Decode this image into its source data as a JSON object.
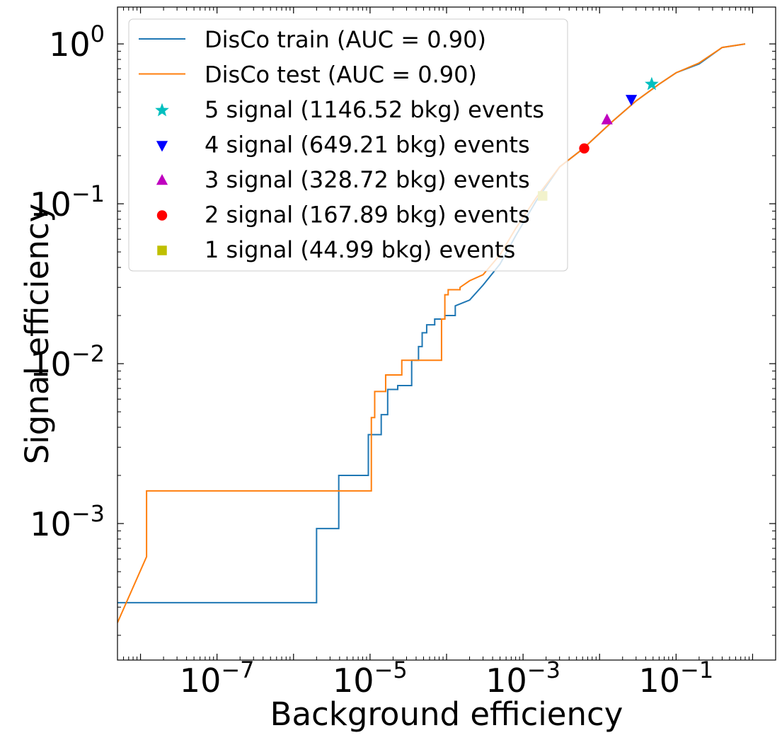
{
  "chart_data": {
    "type": "line",
    "title": "",
    "xlabel": "Background efficiency",
    "ylabel": "Signal efficiency",
    "xscale": "log",
    "yscale": "log",
    "xlim": [
      5e-09,
      2.0
    ],
    "ylim": [
      0.00014,
      1.7
    ],
    "grid": false,
    "legend_position": "top-left",
    "x_ticks": [
      {
        "value": 1e-07,
        "mantissa": "10",
        "exponent": "−7"
      },
      {
        "value": 1e-05,
        "mantissa": "10",
        "exponent": "−5"
      },
      {
        "value": 0.001,
        "mantissa": "10",
        "exponent": "−3"
      },
      {
        "value": 0.1,
        "mantissa": "10",
        "exponent": "−1"
      }
    ],
    "y_ticks": [
      {
        "value": 0.001,
        "mantissa": "10",
        "exponent": "−3"
      },
      {
        "value": 0.01,
        "mantissa": "10",
        "exponent": "−2"
      },
      {
        "value": 0.1,
        "mantissa": "10",
        "exponent": "−1"
      },
      {
        "value": 1,
        "mantissa": "10",
        "exponent": "0"
      }
    ],
    "series": [
      {
        "name": "DisCo train (AUC = 0.90)",
        "color": "#1f77b4",
        "kind": "line",
        "x": [
          5e-09,
          2e-06,
          2e-06,
          3.9e-06,
          3.9e-06,
          9.5e-06,
          9.5e-06,
          1.4e-05,
          1.4e-05,
          1.7e-05,
          1.7e-05,
          2.3e-05,
          2.3e-05,
          3.5e-05,
          3.5e-05,
          4.3e-05,
          4.3e-05,
          4.8e-05,
          4.8e-05,
          5.5e-05,
          5.5e-05,
          7e-05,
          7e-05,
          9.5e-05,
          9.5e-05,
          0.00013,
          0.00013,
          0.0002,
          0.0003,
          0.0005,
          0.0008,
          0.0015,
          0.003,
          0.006,
          0.015,
          0.03,
          0.06,
          0.1,
          0.2,
          0.4,
          0.8
        ],
        "y": [
          0.00032,
          0.00032,
          0.00093,
          0.00093,
          0.002,
          0.002,
          0.0036,
          0.0036,
          0.0048,
          0.0048,
          0.0069,
          0.0069,
          0.0073,
          0.0073,
          0.0105,
          0.0105,
          0.0128,
          0.0128,
          0.0156,
          0.0156,
          0.0175,
          0.0175,
          0.019,
          0.019,
          0.02,
          0.02,
          0.023,
          0.025,
          0.031,
          0.042,
          0.063,
          0.105,
          0.17,
          0.22,
          0.33,
          0.44,
          0.56,
          0.66,
          0.75,
          0.95,
          1.0
        ]
      },
      {
        "name": "DisCo test (AUC = 0.90)",
        "color": "#ff7f0e",
        "kind": "line",
        "x": [
          5e-09,
          1.2e-08,
          1.2e-08,
          1.04e-05,
          1.04e-05,
          1.15e-05,
          1.15e-05,
          1.6e-05,
          1.6e-05,
          2.6e-05,
          2.6e-05,
          8.6e-05,
          8.6e-05,
          9.5e-05,
          9.5e-05,
          0.000105,
          0.000105,
          0.00015,
          0.00015,
          0.0002,
          0.0003,
          0.0005,
          0.0008,
          0.0015,
          0.003,
          0.006,
          0.015,
          0.03,
          0.06,
          0.1,
          0.2,
          0.4,
          0.8
        ],
        "y": [
          0.00024,
          0.00062,
          0.0016,
          0.0016,
          0.0046,
          0.0046,
          0.0067,
          0.0067,
          0.0085,
          0.0085,
          0.0105,
          0.0105,
          0.019,
          0.019,
          0.027,
          0.027,
          0.029,
          0.029,
          0.03,
          0.033,
          0.036,
          0.048,
          0.07,
          0.11,
          0.17,
          0.22,
          0.33,
          0.44,
          0.56,
          0.66,
          0.76,
          0.95,
          1.0
        ]
      }
    ],
    "markers": [
      {
        "name": "5 signal (1146.52 bkg) events",
        "marker": "star",
        "color": "#00bfbf",
        "x": 0.048,
        "y": 0.56
      },
      {
        "name": "4 signal (649.21 bkg) events",
        "marker": "triangle-down",
        "color": "#0000ff",
        "x": 0.026,
        "y": 0.45
      },
      {
        "name": "3 signal (328.72 bkg) events",
        "marker": "triangle-up",
        "color": "#bf00bf",
        "x": 0.0125,
        "y": 0.335
      },
      {
        "name": "2 signal (167.89 bkg) events",
        "marker": "circle",
        "color": "#ff0000",
        "x": 0.0063,
        "y": 0.222
      },
      {
        "name": "1 signal (44.99 bkg) events",
        "marker": "square",
        "color": "#bfbf00",
        "x": 0.0018,
        "y": 0.112
      }
    ]
  }
}
